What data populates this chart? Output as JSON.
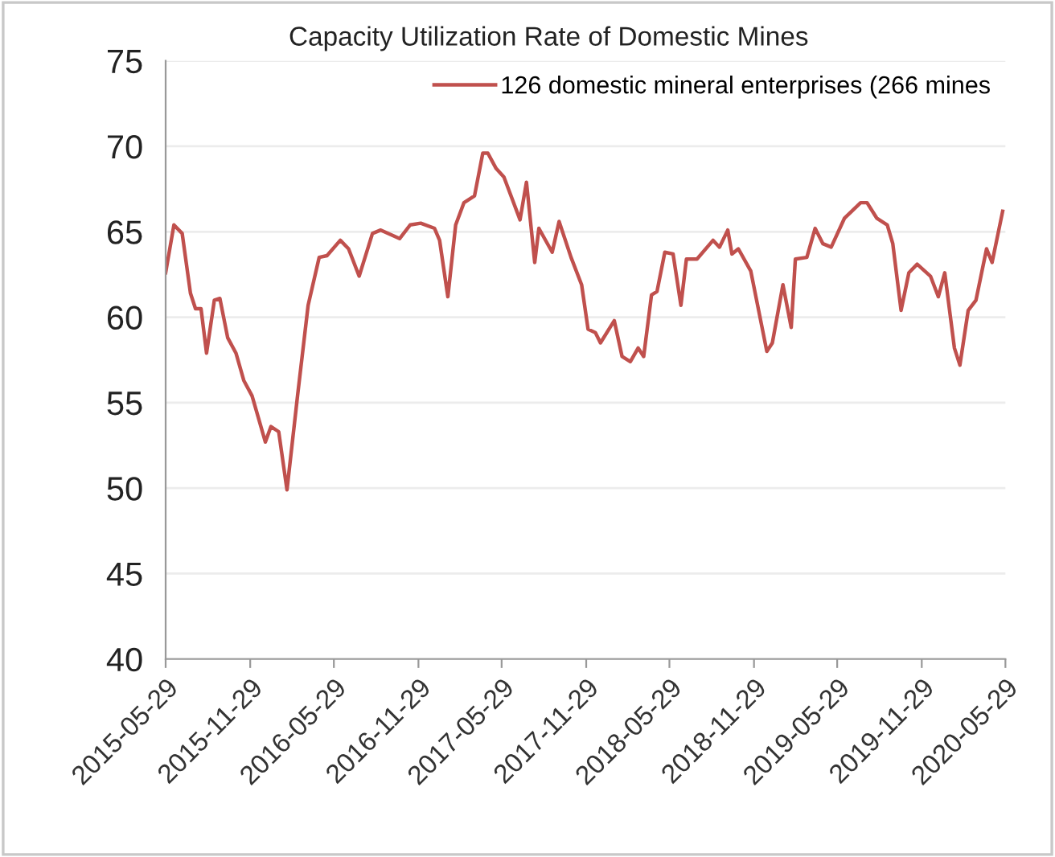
{
  "chart_data": {
    "type": "line",
    "title": "Capacity Utilization Rate of Domestic Mines",
    "x": [
      "2015-05-29",
      "2015-06-16",
      "2015-07-04",
      "2015-07-22",
      "2015-08-02",
      "2015-08-14",
      "2015-08-26",
      "2015-09-12",
      "2015-09-24",
      "2015-10-11",
      "2015-10-29",
      "2015-11-15",
      "2015-12-03",
      "2016-01-01",
      "2016-01-13",
      "2016-01-30",
      "2016-02-17",
      "2016-03-11",
      "2016-04-03",
      "2016-04-27",
      "2016-05-14",
      "2016-06-12",
      "2016-06-30",
      "2016-07-23",
      "2016-08-21",
      "2016-09-08",
      "2016-10-19",
      "2016-11-11",
      "2016-12-04",
      "2017-01-03",
      "2017-01-14",
      "2017-02-01",
      "2017-02-18",
      "2017-03-08",
      "2017-03-31",
      "2017-04-18",
      "2017-04-29",
      "2017-05-17",
      "2017-06-03",
      "2017-07-08",
      "2017-07-22",
      "2017-08-09",
      "2017-08-18",
      "2017-09-16",
      "2017-10-01",
      "2017-10-27",
      "2017-11-19",
      "2017-12-03",
      "2017-12-19",
      "2017-12-30",
      "2018-01-29",
      "2018-02-15",
      "2018-03-05",
      "2018-03-22",
      "2018-04-03",
      "2018-04-20",
      "2018-05-02",
      "2018-05-19",
      "2018-06-06",
      "2018-06-23",
      "2018-07-05",
      "2018-07-28",
      "2018-09-01",
      "2018-09-15",
      "2018-10-03",
      "2018-10-12",
      "2018-10-26",
      "2018-11-22",
      "2018-12-27",
      "2019-01-08",
      "2019-01-31",
      "2019-02-18",
      "2019-02-27",
      "2019-03-24",
      "2019-04-11",
      "2019-04-28",
      "2019-05-16",
      "2019-06-14",
      "2019-07-19",
      "2019-08-02",
      "2019-08-23",
      "2019-09-15",
      "2019-09-27",
      "2019-10-15",
      "2019-11-01",
      "2019-11-19",
      "2019-12-18",
      "2020-01-04",
      "2020-01-18",
      "2020-02-08",
      "2020-02-20",
      "2020-03-09",
      "2020-03-26",
      "2020-04-18",
      "2020-04-30",
      "2020-05-23"
    ],
    "series": [
      {
        "name": "126 domestic mineral enterprises (266 mines",
        "color": "#c0504d",
        "values": [
          62.6,
          65.4,
          64.9,
          61.4,
          60.5,
          60.5,
          57.9,
          61.0,
          61.1,
          58.8,
          57.9,
          56.3,
          55.4,
          52.7,
          53.6,
          53.3,
          49.9,
          55.4,
          60.7,
          63.5,
          63.6,
          64.5,
          64.0,
          62.4,
          64.9,
          65.1,
          64.6,
          65.4,
          65.5,
          65.2,
          64.5,
          61.2,
          65.4,
          66.7,
          67.1,
          69.6,
          69.6,
          68.7,
          68.2,
          65.7,
          67.9,
          63.2,
          65.2,
          63.8,
          65.6,
          63.5,
          61.9,
          59.3,
          59.1,
          58.5,
          59.8,
          57.7,
          57.4,
          58.2,
          57.7,
          61.3,
          61.5,
          63.8,
          63.7,
          60.7,
          63.4,
          63.4,
          64.5,
          64.1,
          65.1,
          63.7,
          64.0,
          62.7,
          58.0,
          58.5,
          61.9,
          59.4,
          63.4,
          63.5,
          65.2,
          64.3,
          64.1,
          65.8,
          66.7,
          66.7,
          65.8,
          65.4,
          64.3,
          60.4,
          62.6,
          63.1,
          62.4,
          61.2,
          62.6,
          58.2,
          57.2,
          60.4,
          61.0,
          64.0,
          63.2,
          66.2
        ]
      }
    ],
    "xlim": [
      "2015-05-29",
      "2020-05-29"
    ],
    "xticks": [
      "2015-05-29",
      "2015-11-29",
      "2016-05-29",
      "2016-11-29",
      "2017-05-29",
      "2017-11-29",
      "2018-05-29",
      "2018-11-29",
      "2019-05-29",
      "2019-11-29",
      "2020-05-29"
    ],
    "ylim": [
      40,
      75
    ],
    "yticks": [
      40,
      45,
      50,
      55,
      60,
      65,
      70,
      75
    ],
    "grid": "y",
    "legend": "top right",
    "marker": "none",
    "line_style": "solid"
  }
}
